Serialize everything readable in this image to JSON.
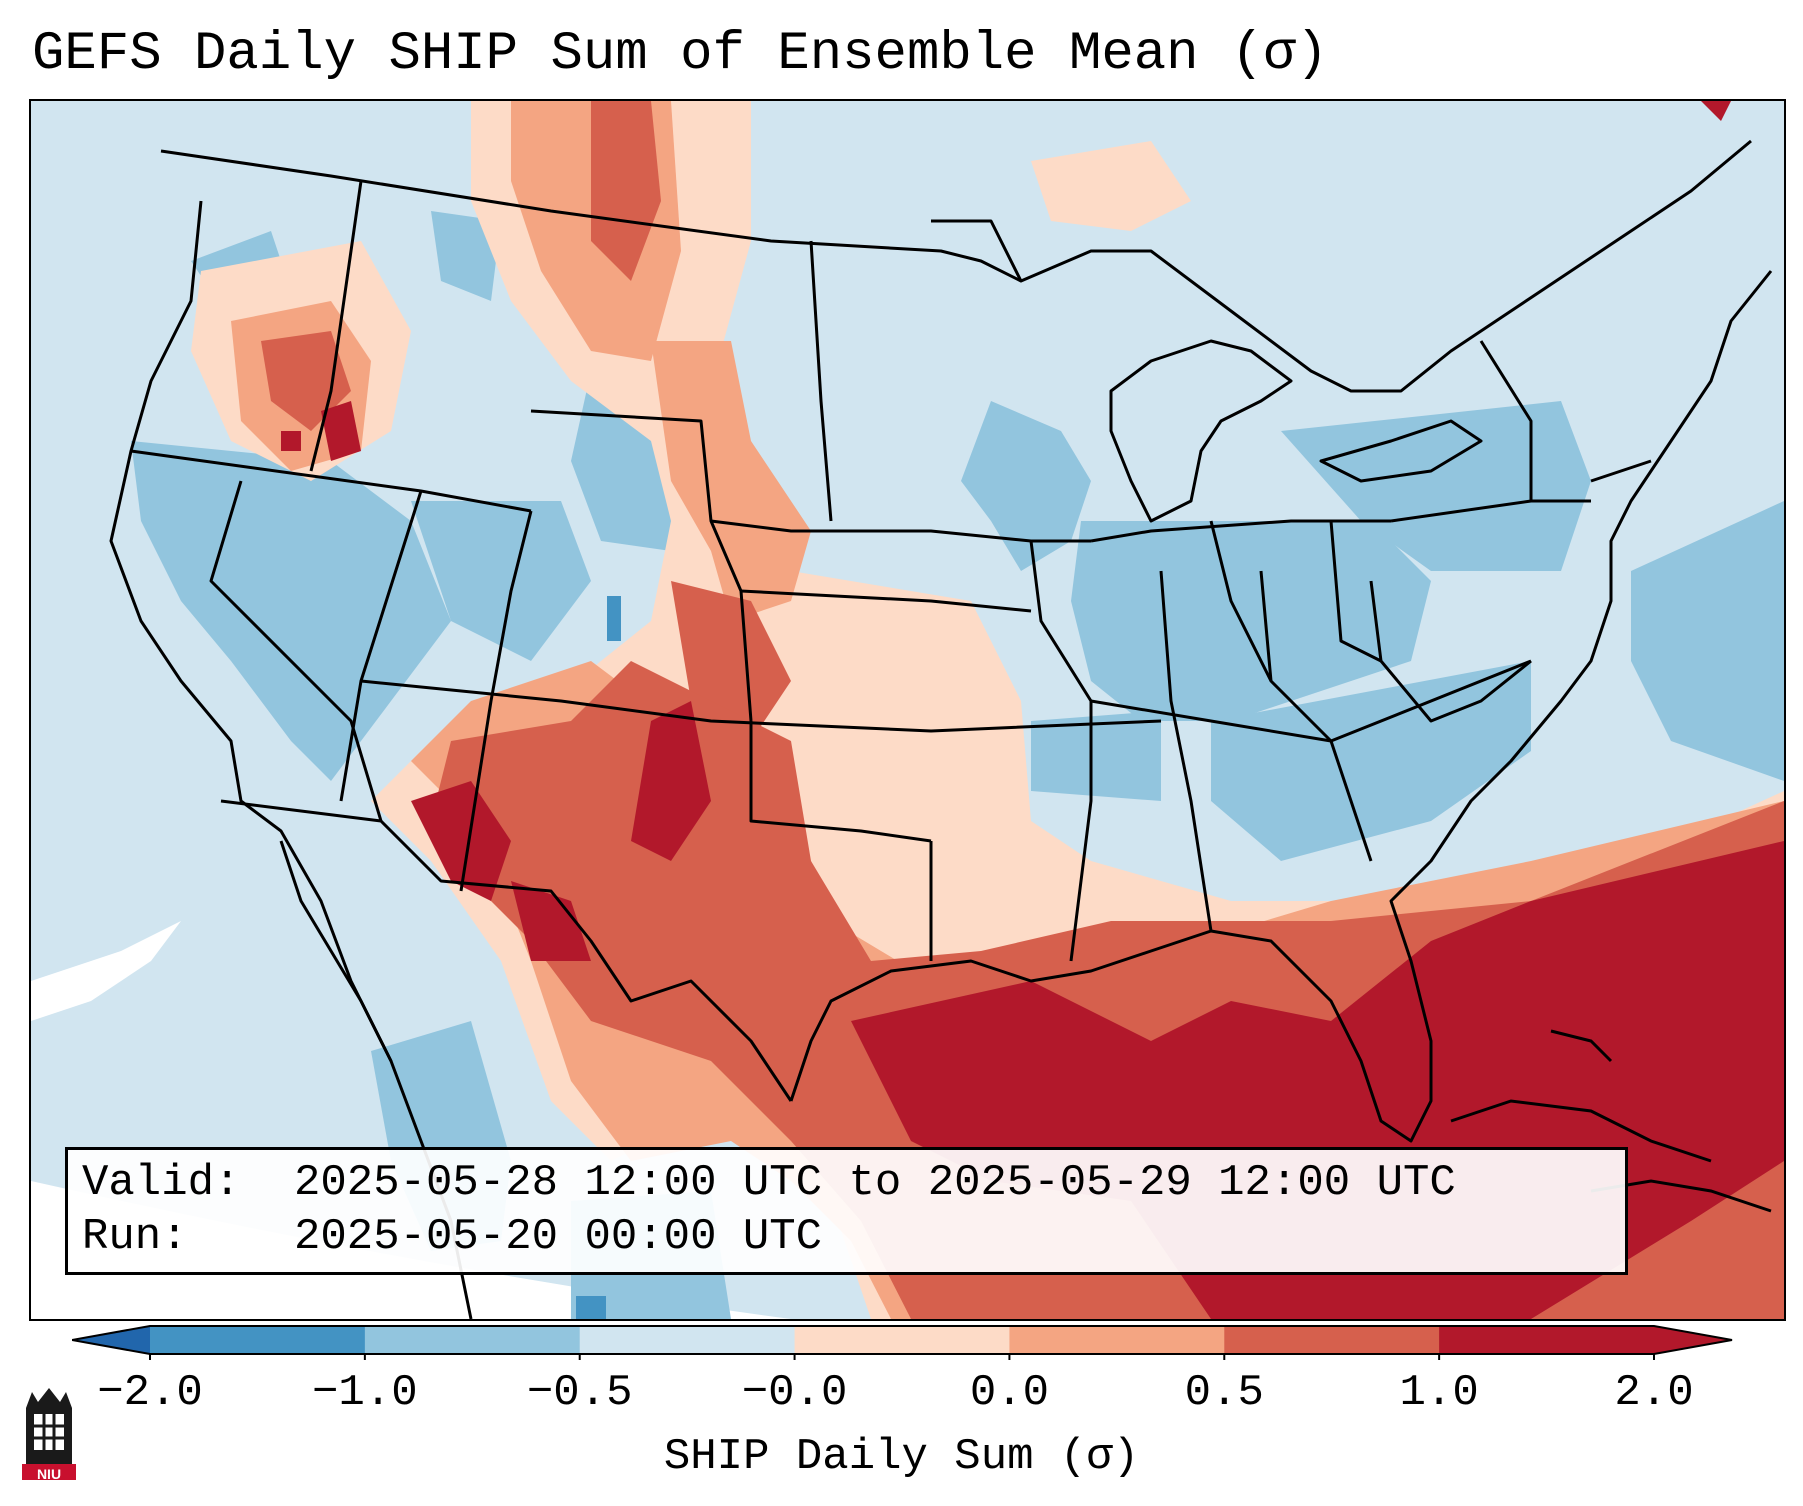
{
  "title": "GEFS Daily SHIP Sum of Ensemble Mean (σ)",
  "info": {
    "valid_label": "Valid:",
    "valid_value": "2025-05-28 12:00 UTC to 2025-05-29 12:00 UTC",
    "run_label": "Run:",
    "run_value": "2025-05-20 00:00 UTC"
  },
  "colorbar": {
    "label": "SHIP Daily Sum (σ)",
    "ticks": [
      "−2.0",
      "−1.0",
      "−0.5",
      "−0.0",
      "0.0",
      "0.5",
      "1.0",
      "2.0"
    ],
    "colors": [
      "#4393c3",
      "#92c5de",
      "#d1e5f0",
      "#fddbc7",
      "#f4a582",
      "#d6604d",
      "#b2182b"
    ],
    "under_color": "#2166ac",
    "over_color": "#b2182b",
    "white_color": "#ffffff"
  },
  "logo": {
    "text": "NIU",
    "color": "#c8102e"
  }
}
